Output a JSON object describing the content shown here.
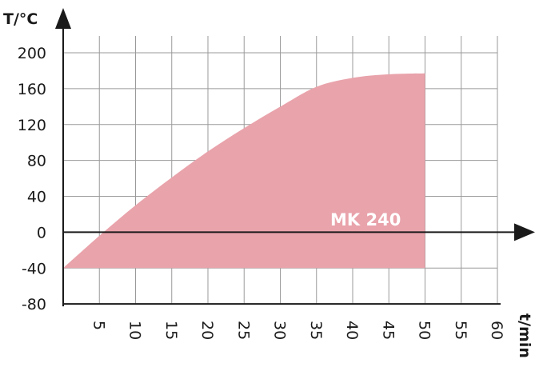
{
  "chart_data": {
    "type": "area",
    "title": "",
    "ylabel": "T/°C",
    "xlabel": "t/min",
    "xlim": [
      0,
      60
    ],
    "ylim": [
      -80,
      200
    ],
    "x_ticks": [
      "5",
      "10",
      "15",
      "20",
      "25",
      "30",
      "35",
      "40",
      "45",
      "50",
      "55",
      "60"
    ],
    "y_ticks": [
      "200",
      "160",
      "120",
      "80",
      "40",
      "0",
      "-40",
      "-80"
    ],
    "grid": true,
    "colors": {
      "area": "#e9a3ab",
      "grid": "#9a9a9a",
      "axis": "#1a1a1a"
    },
    "series": [
      {
        "name": "MK 240",
        "baseline": -40,
        "x": [
          0,
          5,
          10,
          15,
          20,
          25,
          30,
          35,
          40,
          45,
          50
        ],
        "y": [
          -40,
          -4,
          30,
          61,
          90,
          116,
          140,
          162,
          172,
          176,
          177
        ]
      }
    ]
  }
}
